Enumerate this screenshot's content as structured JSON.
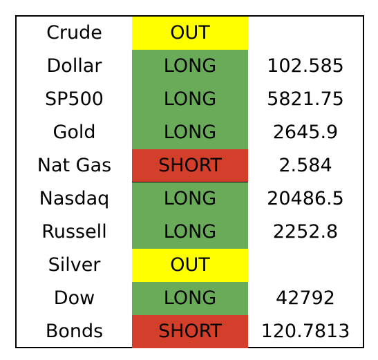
{
  "table": {
    "rows": [
      {
        "asset": "Crude",
        "signal": "OUT",
        "color": "#ffff00",
        "price": null
      },
      {
        "asset": "Dollar",
        "signal": "LONG",
        "color": "#6aab5a",
        "price": 102.585
      },
      {
        "asset": "SP500",
        "signal": "LONG",
        "color": "#6aab5a",
        "price": 5821.75
      },
      {
        "asset": "Gold",
        "signal": "LONG",
        "color": "#6aab5a",
        "price": 2645.9
      },
      {
        "asset": "Nat Gas",
        "signal": "SHORT",
        "color": "#d43f2c",
        "price": 2.584
      },
      {
        "asset": "Nasdaq",
        "signal": "LONG",
        "color": "#6aab5a",
        "price": 20486.5
      },
      {
        "asset": "Russell",
        "signal": "LONG",
        "color": "#6aab5a",
        "price": 2252.8
      },
      {
        "asset": "Silver",
        "signal": "OUT",
        "color": "#ffff00",
        "price": null
      },
      {
        "asset": "Dow",
        "signal": "LONG",
        "color": "#6aab5a",
        "price": 42792
      },
      {
        "asset": "Bonds",
        "signal": "SHORT",
        "color": "#d43f2c",
        "price": 120.7813
      }
    ]
  }
}
